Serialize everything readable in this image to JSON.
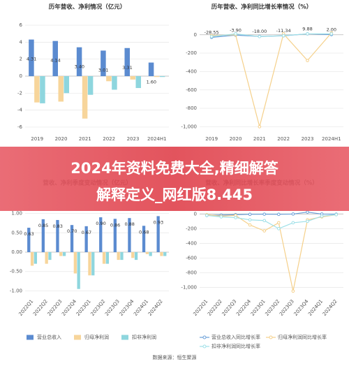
{
  "chart_data": [
    {
      "type": "bar",
      "title": "历年营收、净利情况（亿元）",
      "categories": [
        "2019",
        "2020",
        "2021",
        "2022",
        "2023",
        "2024H1"
      ],
      "series": [
        {
          "color": "#5b8bd0",
          "values": [
            4.31,
            4.14,
            3.4,
            3.01,
            3.31,
            1.6
          ],
          "value_labels": [
            "4.31",
            "4.14",
            "3.40",
            "3.01",
            "3.31",
            "1.60"
          ]
        },
        {
          "color": "#f7d59b",
          "values": [
            -3.1,
            -3.0,
            -5.0,
            -0.6,
            -0.4,
            -0.1
          ]
        },
        {
          "color": "#8ed6de",
          "values": [
            -3.2,
            -2.0,
            -2.2,
            -1.6,
            -1.4,
            -0.1
          ]
        }
      ],
      "ylim": [
        -6.5,
        6.5
      ],
      "yticks": [
        -6,
        -4,
        -2,
        0,
        2,
        4,
        6
      ],
      "grid": true
    },
    {
      "type": "line",
      "title": "历年营收、净利同比增长率情况（%）",
      "categories": [
        "2019",
        "2020",
        "2021",
        "2022",
        "2023",
        "2024H1"
      ],
      "series": [
        {
          "color": "#6a9fd8",
          "values": [
            -28.55,
            -3.9,
            -18.0,
            -11.34,
            9.88,
            2.0
          ],
          "value_labels": [
            "-28.55",
            "-3.90",
            "-18.00",
            "-11.34",
            "9.88",
            "2.00"
          ]
        },
        {
          "color": "#f5d08a",
          "values": [
            -10,
            0,
            -1000,
            10,
            -280,
            20
          ]
        },
        {
          "color": "#9ee0e8",
          "values": [
            -20,
            10,
            -20,
            -10,
            10,
            10
          ]
        }
      ],
      "ylim": [
        -1050,
        150
      ],
      "yticks": [
        0,
        -200,
        -400,
        -600,
        -800,
        {
          "value": -1000,
          "label": "-1,000"
        }
      ],
      "grid": true
    },
    {
      "type": "bar",
      "title": "营收、净利季度变动情况（亿元）",
      "categories": [
        "2022Q1",
        "2022Q2",
        "2022Q3",
        "2022Q4",
        "2023Q1",
        "2023Q2",
        "2023Q3",
        "2023Q4",
        "2024Q1",
        "2024Q2"
      ],
      "series": [
        {
          "name": "营业总收入",
          "color": "#5b8bd0",
          "values": [
            0.63,
            0.85,
            0.83,
            0.7,
            0.67,
            0.9,
            0.86,
            0.88,
            0.68,
            0.93
          ],
          "value_labels": [
            "0.63",
            "0.85",
            "0.83",
            "0.70",
            "0.67",
            "0.90",
            "0.86",
            "0.88",
            "0.68",
            "0.93"
          ]
        },
        {
          "name": "归母净利润",
          "color": "#f7d59b",
          "values": [
            -0.35,
            -0.3,
            -0.1,
            -0.55,
            -0.6,
            -0.3,
            -0.2,
            -0.15,
            -0.05,
            -0.1
          ]
        },
        {
          "name": "扣非净利润",
          "color": "#8ed6de",
          "values": [
            -0.3,
            -0.2,
            -0.1,
            -0.95,
            -0.6,
            -0.3,
            -0.2,
            -0.2,
            -0.1,
            -0.1
          ]
        }
      ],
      "ylim": [
        -1.1,
        1.1
      ],
      "yticks": [
        {
          "value": 1,
          "label": "1.00"
        },
        {
          "value": 0.5,
          "label": "0.50"
        },
        {
          "value": 0,
          "label": "0.00"
        },
        {
          "value": -0.5,
          "label": "-0.50"
        },
        {
          "value": -1,
          "label": "-1.00"
        }
      ],
      "grid": true
    },
    {
      "type": "line",
      "title": "营收、净利同比增长率季度变动情况（%）",
      "categories": [
        "2022Q1",
        "2022Q2",
        "2022Q3",
        "2022Q4",
        "2023Q1",
        "2023Q2",
        "2023Q3",
        "2023Q4",
        "2024Q1",
        "2024Q2"
      ],
      "series": [
        {
          "name": "营业总收入同比增长率",
          "color": "#6a9fd8",
          "values": [
            -21,
            -15,
            -10,
            -5,
            -3,
            -5,
            -1,
            25,
            -1,
            -3
          ]
        },
        {
          "name": "归母净利润同比增长率",
          "color": "#f5d08a",
          "values": [
            -10,
            -30,
            -20,
            -150,
            -230,
            -120,
            -1050,
            -80,
            -40,
            -10
          ]
        },
        {
          "name": "扣非净利润同比增长率",
          "color": "#9ee0e8",
          "values": [
            -20,
            -40,
            -50,
            -80,
            -90,
            -200,
            -120,
            -100,
            -30,
            -10
          ]
        }
      ],
      "ylim": [
        -1100,
        60
      ],
      "yticks": [
        0,
        -200,
        -400,
        -600,
        -800,
        {
          "value": -1000,
          "label": "-1,000"
        }
      ],
      "grid": true
    }
  ],
  "banner": {
    "lines": [
      "2024年资料免费大全,精细解答",
      "解释定义_网红版8.445"
    ]
  },
  "source": "数据来源：恒生聚源"
}
